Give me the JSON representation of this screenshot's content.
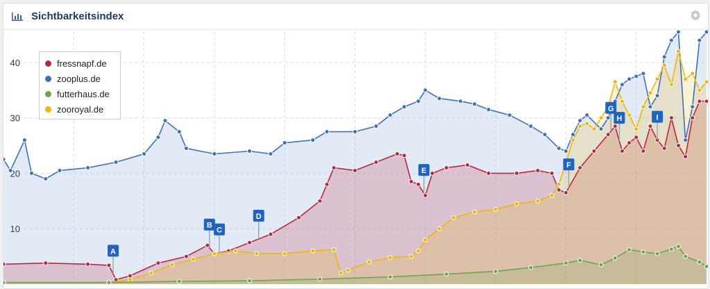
{
  "header": {
    "title": "Sichtbarkeitsindex"
  },
  "chart_data": {
    "type": "area",
    "title": "Sichtbarkeitsindex",
    "ylim": [
      0,
      46
    ],
    "yticks": [
      10,
      20,
      30,
      40
    ],
    "grid": true,
    "legend_position": "top-left",
    "x_range": [
      0,
      100
    ],
    "series": [
      {
        "name": "fressnapf.de",
        "color": "#c0243a",
        "fill": "rgba(192,36,58,0.20)",
        "points": [
          [
            0,
            3.6
          ],
          [
            6,
            3.8
          ],
          [
            12,
            3.6
          ],
          [
            15,
            3.4
          ],
          [
            16,
            0.8
          ],
          [
            18,
            1.5
          ],
          [
            22,
            3.8
          ],
          [
            26,
            5.0
          ],
          [
            29,
            7.0
          ],
          [
            30,
            5.5
          ],
          [
            32,
            6.0
          ],
          [
            35,
            7.5
          ],
          [
            38,
            9.0
          ],
          [
            42,
            12.0
          ],
          [
            45,
            15.0
          ],
          [
            46,
            18.0
          ],
          [
            47,
            21.0
          ],
          [
            50,
            20.5
          ],
          [
            53,
            22.0
          ],
          [
            56,
            23.5
          ],
          [
            57,
            23.2
          ],
          [
            58,
            18.5
          ],
          [
            59,
            18.0
          ],
          [
            60,
            16.0
          ],
          [
            61,
            20.0
          ],
          [
            63,
            21.0
          ],
          [
            66,
            21.5
          ],
          [
            69,
            20.0
          ],
          [
            73,
            20.0
          ],
          [
            76,
            20.5
          ],
          [
            78,
            20.0
          ],
          [
            79,
            17.0
          ],
          [
            80,
            16.5
          ],
          [
            82,
            21.0
          ],
          [
            84,
            24.0
          ],
          [
            86,
            27.0
          ],
          [
            87,
            28.5
          ],
          [
            88,
            24.0
          ],
          [
            89,
            25.5
          ],
          [
            90,
            26.5
          ],
          [
            91,
            24.0
          ],
          [
            92,
            28.5
          ],
          [
            93,
            26.0
          ],
          [
            94,
            24.5
          ],
          [
            95,
            30.0
          ],
          [
            96,
            25.0
          ],
          [
            97,
            23.0
          ],
          [
            98,
            30.0
          ],
          [
            99,
            33.0
          ],
          [
            100,
            33.0
          ]
        ]
      },
      {
        "name": "zooplus.de",
        "color": "#3a6fc4",
        "fill": "rgba(58,111,196,0.15)",
        "points": [
          [
            0,
            22.5
          ],
          [
            1,
            20.5
          ],
          [
            3,
            26.0
          ],
          [
            4,
            20.0
          ],
          [
            6,
            19.0
          ],
          [
            8,
            20.5
          ],
          [
            12,
            21.0
          ],
          [
            16,
            22.0
          ],
          [
            20,
            23.5
          ],
          [
            22,
            26.5
          ],
          [
            23,
            29.5
          ],
          [
            25,
            27.5
          ],
          [
            26,
            24.5
          ],
          [
            30,
            23.5
          ],
          [
            35,
            24.0
          ],
          [
            38,
            23.5
          ],
          [
            40,
            25.5
          ],
          [
            44,
            26.0
          ],
          [
            46,
            27.5
          ],
          [
            50,
            27.5
          ],
          [
            53,
            28.5
          ],
          [
            55,
            30.5
          ],
          [
            57,
            32.0
          ],
          [
            59,
            33.0
          ],
          [
            60,
            35.0
          ],
          [
            62,
            33.5
          ],
          [
            65,
            33.0
          ],
          [
            67,
            32.5
          ],
          [
            69,
            31.5
          ],
          [
            72,
            30.5
          ],
          [
            75,
            28.5
          ],
          [
            77,
            27.0
          ],
          [
            79,
            24.5
          ],
          [
            80,
            24.0
          ],
          [
            81,
            27.0
          ],
          [
            82,
            29.5
          ],
          [
            83,
            30.5
          ],
          [
            85,
            28.0
          ],
          [
            86,
            30.0
          ],
          [
            87,
            33.0
          ],
          [
            88,
            36.0
          ],
          [
            89,
            37.0
          ],
          [
            90,
            37.5
          ],
          [
            91,
            38.0
          ],
          [
            92,
            32.0
          ],
          [
            93,
            34.0
          ],
          [
            94,
            41.0
          ],
          [
            95,
            44.0
          ],
          [
            96,
            45.5
          ],
          [
            97,
            26.0
          ],
          [
            98,
            32.0
          ],
          [
            99,
            44.0
          ],
          [
            100,
            45.5
          ]
        ]
      },
      {
        "name": "futterhaus.de",
        "color": "#6aa84f",
        "fill": "rgba(106,168,79,0.18)",
        "points": [
          [
            0,
            0.3
          ],
          [
            15,
            0.3
          ],
          [
            25,
            0.5
          ],
          [
            35,
            0.6
          ],
          [
            45,
            0.9
          ],
          [
            55,
            1.3
          ],
          [
            63,
            1.8
          ],
          [
            70,
            2.3
          ],
          [
            75,
            3.0
          ],
          [
            80,
            3.8
          ],
          [
            82,
            4.3
          ],
          [
            85,
            3.5
          ],
          [
            87,
            4.7
          ],
          [
            89,
            6.2
          ],
          [
            91,
            5.8
          ],
          [
            93,
            5.5
          ],
          [
            95,
            6.3
          ],
          [
            96,
            6.8
          ],
          [
            97,
            5.0
          ],
          [
            99,
            4.0
          ],
          [
            100,
            3.2
          ]
        ]
      },
      {
        "name": "zooroyal.de",
        "color": "#f1b800",
        "fill": "rgba(241,184,0,0.18)",
        "points": [
          [
            0,
            0.3
          ],
          [
            15,
            0.3
          ],
          [
            18,
            0.8
          ],
          [
            21,
            2.0
          ],
          [
            24,
            3.5
          ],
          [
            27,
            4.5
          ],
          [
            30,
            5.5
          ],
          [
            33,
            6.0
          ],
          [
            36,
            5.5
          ],
          [
            40,
            5.5
          ],
          [
            44,
            6.0
          ],
          [
            47,
            6.2
          ],
          [
            48,
            2.0
          ],
          [
            49,
            2.5
          ],
          [
            52,
            4.0
          ],
          [
            55,
            4.8
          ],
          [
            58,
            5.0
          ],
          [
            59,
            6.0
          ],
          [
            60,
            8.0
          ],
          [
            62,
            10.0
          ],
          [
            64,
            12.0
          ],
          [
            67,
            13.0
          ],
          [
            70,
            13.5
          ],
          [
            73,
            14.5
          ],
          [
            76,
            15.0
          ],
          [
            78,
            16.0
          ],
          [
            79,
            18.0
          ],
          [
            80,
            22.0
          ],
          [
            81,
            26.0
          ],
          [
            82,
            28.5
          ],
          [
            83,
            29.0
          ],
          [
            84,
            28.0
          ],
          [
            85,
            30.0
          ],
          [
            86,
            32.0
          ],
          [
            87,
            36.5
          ],
          [
            88,
            33.0
          ],
          [
            89,
            30.5
          ],
          [
            90,
            28.0
          ],
          [
            91,
            32.0
          ],
          [
            92,
            34.5
          ],
          [
            93,
            37.0
          ],
          [
            94,
            39.5
          ],
          [
            95,
            36.0
          ],
          [
            96,
            42.0
          ],
          [
            97,
            37.0
          ],
          [
            98,
            38.0
          ],
          [
            99,
            35.0
          ],
          [
            100,
            36.5
          ]
        ]
      }
    ],
    "annotations": [
      {
        "label": "A",
        "x": 15.6
      },
      {
        "label": "B",
        "x": 29.3
      },
      {
        "label": "C",
        "x": 30.7
      },
      {
        "label": "D",
        "x": 36.3
      },
      {
        "label": "E",
        "x": 59.8
      },
      {
        "label": "F",
        "x": 80.4
      },
      {
        "label": "G",
        "x": 86.4
      },
      {
        "label": "H",
        "x": 87.6
      },
      {
        "label": "I",
        "x": 93.0
      }
    ]
  }
}
